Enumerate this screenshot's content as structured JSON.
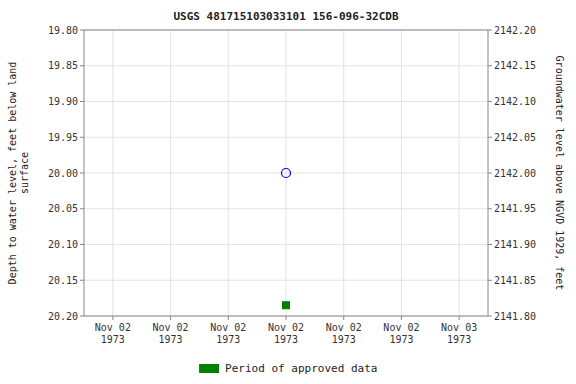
{
  "chart_data": {
    "type": "scatter",
    "title": "USGS 481715103033101 156-096-32CDB",
    "y_label": "Depth to water level, feet below land\nsurface",
    "y2_label": "Groundwater level above NGVD 1929, feet",
    "categories": [
      "Nov 02\n1973",
      "Nov 02\n1973",
      "Nov 02\n1973",
      "Nov 02\n1973",
      "Nov 02\n1973",
      "Nov 02\n1973",
      "Nov 03\n1973"
    ],
    "series": [
      {
        "color": "#0000ff",
        "marker": "open_circle",
        "values": [
          null,
          null,
          null,
          20.0,
          null,
          null,
          null
        ]
      },
      {
        "name": "Period of approved data",
        "color": "#008000",
        "marker": "square",
        "values": [
          null,
          null,
          null,
          20.185,
          null,
          null,
          null
        ]
      }
    ],
    "ylim": [
      20.2,
      19.8
    ],
    "yticks": [
      {
        "value": 19.8,
        "label": "19.80"
      },
      19.85,
      {
        "value": 19.9,
        "label": "19.90"
      },
      19.95,
      {
        "value": 20.0,
        "label": "20.00"
      },
      20.05,
      {
        "value": 20.1,
        "label": "20.10"
      },
      20.15,
      {
        "value": 20.2,
        "label": "20.20"
      }
    ],
    "y2lim": [
      2141.8,
      2142.2
    ],
    "y2ticks": [
      {
        "value": 2141.8,
        "label": "2141.80"
      },
      2141.85,
      {
        "value": 2141.9,
        "label": "2141.90"
      },
      2141.95,
      {
        "value": 2142.0,
        "label": "2142.00"
      },
      2142.05,
      {
        "value": 2142.1,
        "label": "2142.10"
      },
      2142.15,
      {
        "value": 2142.2,
        "label": "2142.20"
      }
    ],
    "grid": true,
    "legend": "bottom"
  }
}
